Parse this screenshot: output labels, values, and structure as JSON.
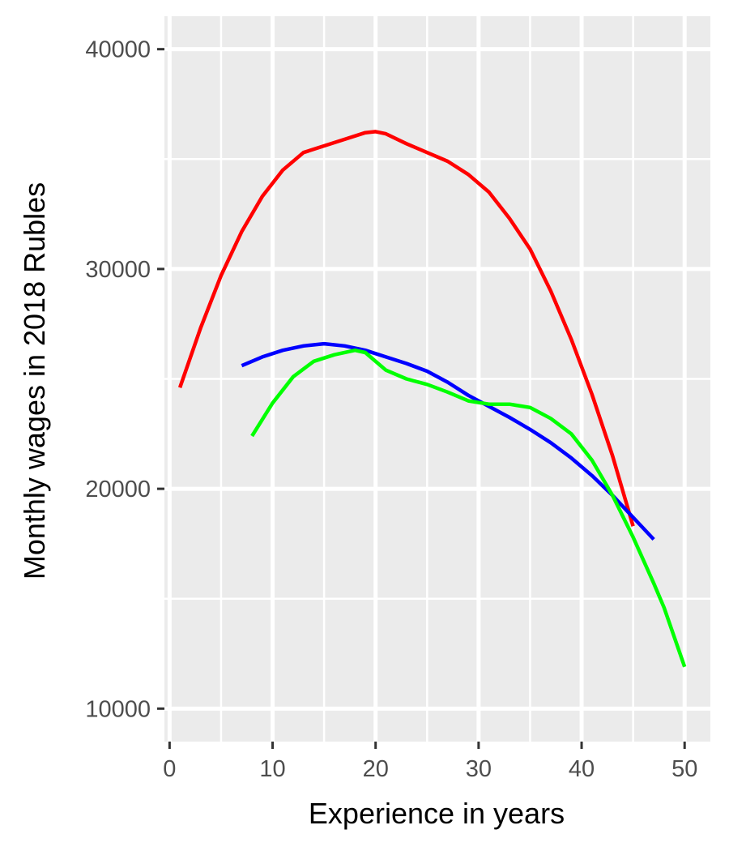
{
  "chart_data": {
    "type": "line",
    "title": "",
    "xlabel": "Experience in years",
    "ylabel": "Monthly wages in 2018 Rubles",
    "xlim": [
      -0.5,
      52.5
    ],
    "ylim": [
      8500,
      41500
    ],
    "x_ticks": [
      0,
      10,
      20,
      30,
      40,
      50
    ],
    "x_tick_labels": [
      "0",
      "10",
      "20",
      "30",
      "40",
      "50"
    ],
    "y_ticks": [
      10000,
      20000,
      30000,
      40000
    ],
    "y_tick_labels": [
      "10000",
      "20000",
      "30000",
      "40000"
    ],
    "grid": true,
    "legend": "none",
    "colors": {
      "panel": "#EBEBEB",
      "grid": "#FFFFFF",
      "tick": "#333333"
    },
    "series": [
      {
        "color": "#FF0000",
        "x": [
          1,
          3,
          5,
          7,
          9,
          11,
          13,
          15,
          17,
          19,
          20,
          21,
          23,
          25,
          27,
          29,
          31,
          33,
          35,
          37,
          39,
          41,
          43,
          45
        ],
        "y": [
          24600,
          27300,
          29700,
          31700,
          33300,
          34500,
          35300,
          35600,
          35900,
          36200,
          36250,
          36150,
          35700,
          35300,
          34900,
          34300,
          33500,
          32300,
          30900,
          29000,
          26800,
          24300,
          21500,
          18300
        ]
      },
      {
        "color": "#0000FF",
        "x": [
          7,
          9,
          11,
          13,
          15,
          17,
          19,
          21,
          23,
          25,
          27,
          29,
          31,
          33,
          35,
          37,
          39,
          41,
          43,
          45,
          47
        ],
        "y": [
          25600,
          26000,
          26300,
          26500,
          26600,
          26500,
          26300,
          26000,
          25700,
          25350,
          24850,
          24250,
          23750,
          23250,
          22700,
          22100,
          21400,
          20600,
          19700,
          18700,
          17700
        ]
      },
      {
        "color": "#00FF00",
        "x": [
          8,
          10,
          12,
          14,
          16,
          18,
          19,
          21,
          23,
          25,
          27,
          29,
          31,
          33,
          35,
          37,
          39,
          41,
          43,
          45,
          47,
          48,
          50
        ],
        "y": [
          22400,
          23900,
          25100,
          25800,
          26100,
          26300,
          26200,
          25400,
          25000,
          24750,
          24400,
          24000,
          23850,
          23850,
          23700,
          23200,
          22500,
          21300,
          19700,
          17800,
          15700,
          14600,
          11900
        ]
      }
    ]
  }
}
